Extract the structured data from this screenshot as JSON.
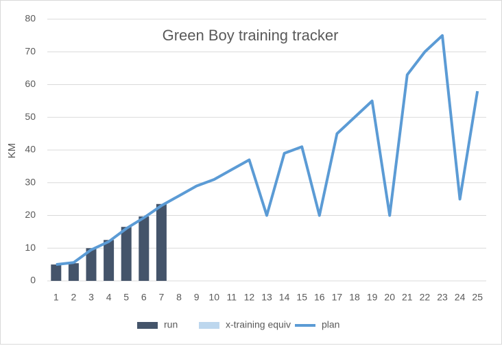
{
  "chart_data": {
    "type": "combo",
    "title": "Green Boy training tracker",
    "y_label": "KM",
    "categories": [
      1,
      2,
      3,
      4,
      5,
      6,
      7,
      8,
      9,
      10,
      11,
      12,
      13,
      14,
      15,
      16,
      17,
      18,
      19,
      20,
      21,
      22,
      23,
      24,
      25
    ],
    "series": [
      {
        "name": "run",
        "type": "bar",
        "color": "#44546a",
        "values": [
          5,
          5.4,
          10,
          12.5,
          16.5,
          19.7,
          23.5,
          null,
          null,
          null,
          null,
          null,
          null,
          null,
          null,
          null,
          null,
          null,
          null,
          null,
          null,
          null,
          null,
          null,
          null
        ]
      },
      {
        "name": "x-training equiv",
        "type": "bar",
        "color": "#bdd7ee",
        "values": [
          null,
          null,
          null,
          null,
          null,
          null,
          null,
          null,
          null,
          null,
          null,
          null,
          null,
          null,
          null,
          null,
          null,
          null,
          null,
          null,
          null,
          null,
          null,
          null,
          null
        ]
      },
      {
        "name": "plan",
        "type": "line",
        "color": "#5b9bd5",
        "values": [
          5,
          5.6,
          9.5,
          12,
          16,
          19.3,
          23,
          26,
          29,
          31,
          34,
          37,
          20,
          39,
          41,
          20,
          45,
          50,
          55,
          20,
          63,
          70,
          75,
          25,
          58
        ]
      }
    ],
    "ylim": [
      0,
      80
    ],
    "yticks": [
      0,
      10,
      20,
      30,
      40,
      50,
      60,
      70,
      80
    ],
    "grid": true,
    "legend": "bottom"
  }
}
